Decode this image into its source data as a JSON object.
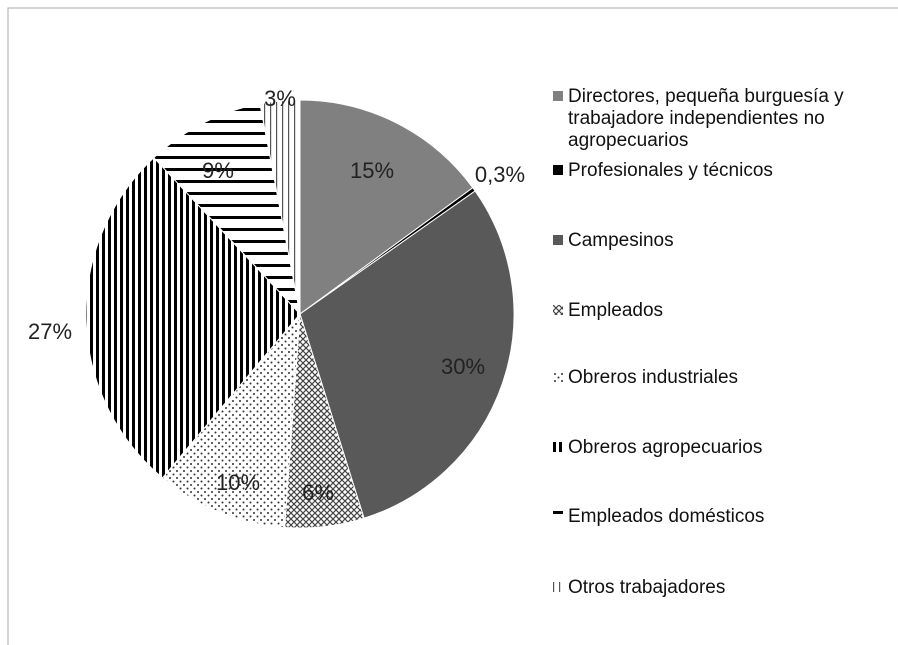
{
  "chart_data": {
    "type": "pie",
    "categories": [
      "Directores, pequeña burguesía y trabajadore independientes no agropecuarios",
      "Profesionales y técnicos",
      "Campesinos",
      "Empleados",
      "Obreros industriales",
      "Obreros agropecuarios",
      "Empleados domésticos",
      "Otros trabajadores"
    ],
    "values": [
      15,
      0.3,
      30,
      6,
      10,
      27,
      9,
      3
    ],
    "value_labels": [
      "15%",
      "0,3%",
      "30%",
      "6%",
      "10%",
      "27%",
      "9%",
      "3%"
    ],
    "colors": [
      "#808080",
      "#000000",
      "#595959",
      "crosshatch",
      "dots",
      "vstripes",
      "hstripes",
      "thinstripes"
    ],
    "legend": "right"
  }
}
